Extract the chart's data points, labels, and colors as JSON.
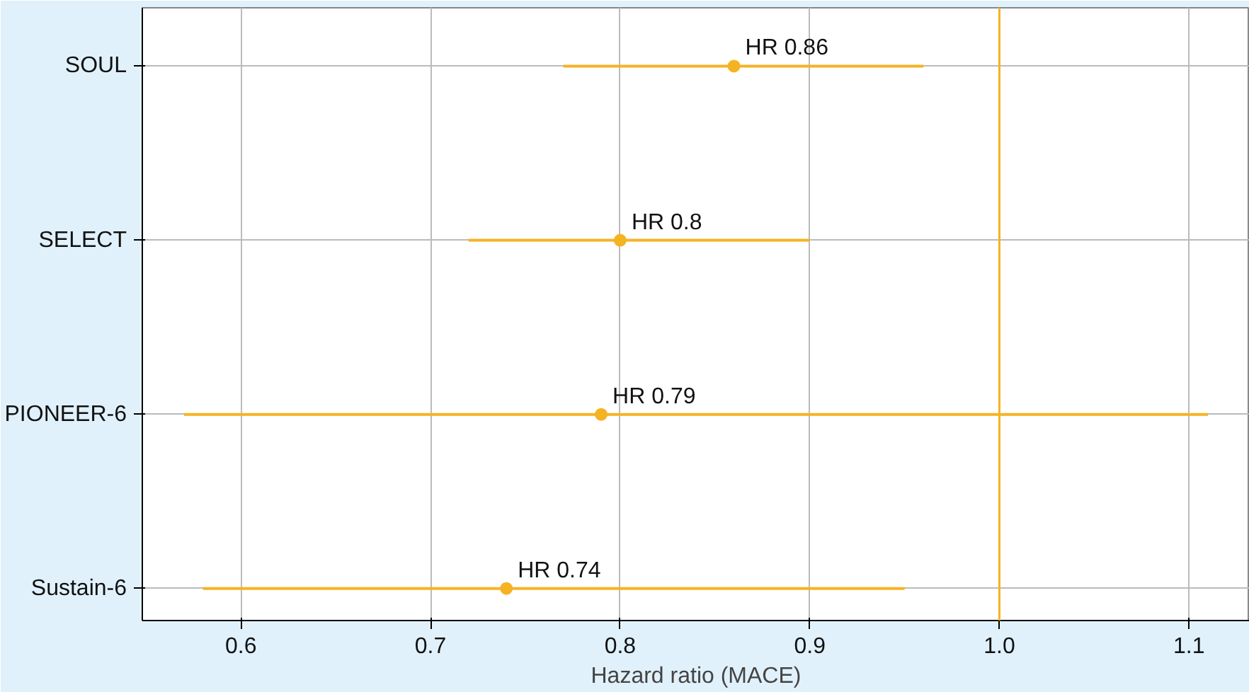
{
  "chart_data": {
    "type": "scatter",
    "orientation": "horizontal",
    "categories": [
      "SOUL",
      "SELECT",
      "PIONEER-6",
      "Sustain-6"
    ],
    "values": [
      0.86,
      0.8,
      0.79,
      0.74
    ],
    "errors": [
      [
        0.77,
        0.96
      ],
      [
        0.72,
        0.9
      ],
      [
        0.57,
        1.11
      ],
      [
        0.58,
        0.95
      ]
    ],
    "value_labels": [
      "HR 0.86",
      "HR 0.8",
      "HR 0.79",
      "HR 0.74"
    ],
    "color": "#f5b324",
    "marker": "circle",
    "grid": true,
    "xlim": [
      0.548,
      1.132
    ],
    "xticks": [
      {
        "value": 0.6,
        "label": "0.6"
      },
      {
        "value": 0.7,
        "label": "0.7"
      },
      {
        "value": 0.8,
        "label": "0.8"
      },
      {
        "value": 0.9,
        "label": "0.9"
      },
      {
        "value": 1.0,
        "label": "1.0"
      },
      {
        "value": 1.1,
        "label": "1.1"
      }
    ],
    "xlabel": "Hazard ratio (MACE)",
    "ref_lines": [
      {
        "axis": "x",
        "value": 1.0,
        "color": "#f5b324"
      }
    ]
  }
}
